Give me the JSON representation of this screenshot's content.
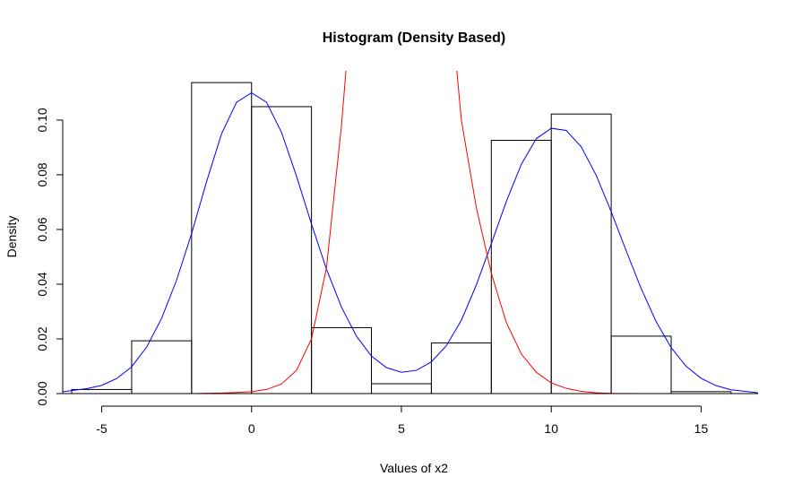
{
  "chart_data": {
    "type": "bar",
    "title": "Histogram (Density Based)",
    "xlabel": "Values of x2",
    "ylabel": "Density",
    "xlim": [
      -6.3,
      16.9
    ],
    "ylim": [
      0,
      0.118
    ],
    "x_ticks": [
      -5,
      0,
      5,
      10,
      15
    ],
    "x_tick_labels": [
      "-5",
      "0",
      "5",
      "10",
      "15"
    ],
    "y_ticks": [
      0,
      0.02,
      0.04,
      0.06,
      0.08,
      0.1
    ],
    "y_tick_labels": [
      "0.00",
      "0.02",
      "0.04",
      "0.06",
      "0.08",
      "0.10"
    ],
    "bins": [
      {
        "x0": -6,
        "x1": -4,
        "density": 0.0015
      },
      {
        "x0": -4,
        "x1": -2,
        "density": 0.0193
      },
      {
        "x0": -2,
        "x1": 0,
        "density": 0.1137
      },
      {
        "x0": 0,
        "x1": 2,
        "density": 0.1049
      },
      {
        "x0": 2,
        "x1": 4,
        "density": 0.0241
      },
      {
        "x0": 4,
        "x1": 6,
        "density": 0.0036
      },
      {
        "x0": 6,
        "x1": 8,
        "density": 0.0185
      },
      {
        "x0": 8,
        "x1": 10,
        "density": 0.0926
      },
      {
        "x0": 10,
        "x1": 12,
        "density": 0.1022
      },
      {
        "x0": 12,
        "x1": 14,
        "density": 0.021
      },
      {
        "x0": 14,
        "x1": 16,
        "density": 0.0007
      }
    ],
    "lines": [
      {
        "color": "#0000ff",
        "points": [
          [
            -6.3,
            0.0007
          ],
          [
            -5.5,
            0.0018
          ],
          [
            -5,
            0.003
          ],
          [
            -4.5,
            0.0055
          ],
          [
            -4,
            0.0098
          ],
          [
            -3.5,
            0.017
          ],
          [
            -3,
            0.0275
          ],
          [
            -2.5,
            0.0415
          ],
          [
            -2,
            0.0585
          ],
          [
            -1.5,
            0.0775
          ],
          [
            -1,
            0.095
          ],
          [
            -0.5,
            0.1065
          ],
          [
            0,
            0.11
          ],
          [
            0.5,
            0.1065
          ],
          [
            1,
            0.0955
          ],
          [
            1.5,
            0.0795
          ],
          [
            2,
            0.062
          ],
          [
            2.5,
            0.0455
          ],
          [
            3,
            0.0316
          ],
          [
            3.5,
            0.021
          ],
          [
            4,
            0.0137
          ],
          [
            4.5,
            0.0095
          ],
          [
            5,
            0.0078
          ],
          [
            5.5,
            0.0085
          ],
          [
            6,
            0.0116
          ],
          [
            6.5,
            0.0175
          ],
          [
            7,
            0.0268
          ],
          [
            7.5,
            0.0397
          ],
          [
            8,
            0.0548
          ],
          [
            8.5,
            0.0702
          ],
          [
            9,
            0.0838
          ],
          [
            9.5,
            0.0932
          ],
          [
            10,
            0.097
          ],
          [
            10.5,
            0.0962
          ],
          [
            11,
            0.0902
          ],
          [
            11.5,
            0.0798
          ],
          [
            12,
            0.0665
          ],
          [
            12.5,
            0.0522
          ],
          [
            13,
            0.0384
          ],
          [
            13.5,
            0.0263
          ],
          [
            14,
            0.0168
          ],
          [
            14.5,
            0.01
          ],
          [
            15,
            0.0056
          ],
          [
            15.5,
            0.0029
          ],
          [
            16,
            0.0014
          ],
          [
            16.9,
            0.0003
          ]
        ]
      },
      {
        "color": "#ff0000",
        "points": [
          [
            -6.3,
            0
          ],
          [
            -2,
            0
          ],
          [
            -1,
            0.0002
          ],
          [
            -0.5,
            0.0004
          ],
          [
            0,
            0.0007
          ],
          [
            0.5,
            0.0015
          ],
          [
            1,
            0.0035
          ],
          [
            1.5,
            0.0085
          ],
          [
            2,
            0.02
          ],
          [
            2.5,
            0.046
          ],
          [
            3,
            0.098
          ],
          [
            3.15,
            0.118
          ]
        ]
      },
      {
        "color": "#ff0000",
        "points": [
          [
            6.85,
            0.118
          ],
          [
            7,
            0.1
          ],
          [
            7.5,
            0.068
          ],
          [
            8,
            0.044
          ],
          [
            8.5,
            0.026
          ],
          [
            9,
            0.0145
          ],
          [
            9.5,
            0.0078
          ],
          [
            10,
            0.0039
          ],
          [
            10.5,
            0.0019
          ],
          [
            11,
            0.0008
          ],
          [
            11.5,
            0.0003
          ],
          [
            12,
            0.0001
          ],
          [
            13,
            0
          ],
          [
            16.9,
            0
          ]
        ]
      }
    ]
  }
}
